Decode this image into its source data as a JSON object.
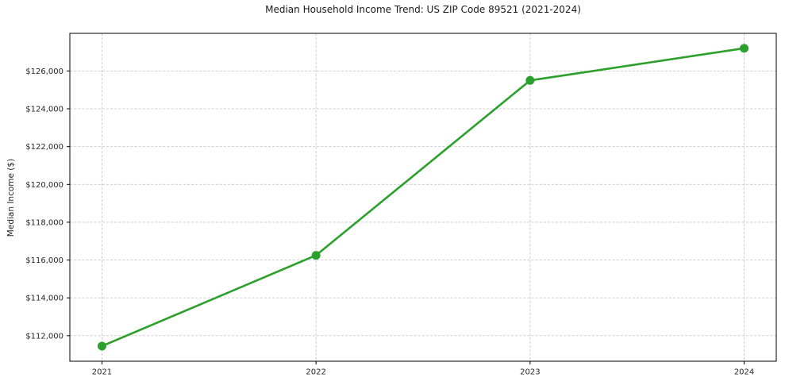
{
  "chart_data": {
    "type": "line",
    "title": "Median Household Income Trend: US ZIP Code 89521 (2021-2024)",
    "xlabel": "",
    "ylabel": "Median Income ($)",
    "x": [
      2021,
      2022,
      2023,
      2024
    ],
    "series": [
      {
        "name": "Median Household Income",
        "values": [
          111450,
          116250,
          125500,
          127200
        ]
      }
    ],
    "xlim": [
      2020.85,
      2024.15
    ],
    "ylim": [
      110650,
      127990
    ],
    "xticks": [
      2021,
      2022,
      2023,
      2024
    ],
    "xtick_labels": [
      "2021",
      "2022",
      "2023",
      "2024"
    ],
    "yticks": [
      112000,
      114000,
      116000,
      118000,
      120000,
      122000,
      124000,
      126000
    ],
    "ytick_labels": [
      "$112,000",
      "$114,000",
      "$116,000",
      "$118,000",
      "$120,000",
      "$122,000",
      "$124,000",
      "$126,000"
    ],
    "grid": true,
    "legend": "none",
    "colors": {
      "line": "#2ca02c",
      "marker": "#2ca02c",
      "grid": "#c9c9c9",
      "spine": "#000000",
      "tick_text": "#262626",
      "background": "#ffffff"
    }
  }
}
